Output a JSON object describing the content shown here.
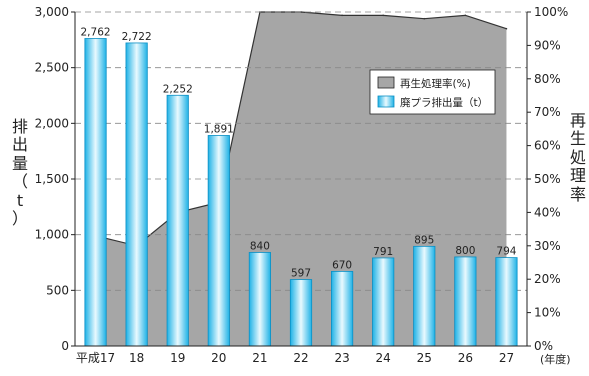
{
  "chart_data": {
    "type": "bar+area",
    "categories": [
      "平成17",
      "18",
      "19",
      "20",
      "21",
      "22",
      "23",
      "24",
      "25",
      "26",
      "27"
    ],
    "x_unit": "(年度)",
    "bar_series": {
      "name": "廃プラ排出量（t）",
      "values": [
        2762,
        2722,
        2252,
        1891,
        840,
        597,
        670,
        791,
        895,
        800,
        794
      ],
      "labels": [
        "2,762",
        "2,722",
        "2,252",
        "1,891",
        "840",
        "597",
        "670",
        "791",
        "895",
        "800",
        "794"
      ]
    },
    "area_series": {
      "name": "再生処理率(%)",
      "values": [
        33,
        30,
        40,
        43,
        100,
        100,
        99,
        99,
        98,
        99,
        95
      ]
    },
    "y_left": {
      "label": "排出量（t）",
      "range": [
        0,
        3000
      ],
      "ticks": [
        "0",
        "500",
        "1,000",
        "1,500",
        "2,000",
        "2,500",
        "3,000"
      ]
    },
    "y_right": {
      "label": "再生処理率",
      "range": [
        0,
        100
      ],
      "ticks": [
        "0%",
        "10%",
        "20%",
        "30%",
        "40%",
        "50%",
        "60%",
        "70%",
        "80%",
        "90%",
        "100%"
      ]
    },
    "legend": {
      "position": "top-right",
      "entries": [
        "再生処理率(%)",
        "廃プラ排出量（t）"
      ]
    },
    "grid": "dashed-horizontal-at-500-steps",
    "colors": {
      "area_fill": "#a6a6a6",
      "area_line": "#333333",
      "bar_light": "#d9f3fb",
      "bar_dark": "#1fb2e6",
      "bar_stroke": "#0b8fc4",
      "grid": "#888888"
    }
  }
}
